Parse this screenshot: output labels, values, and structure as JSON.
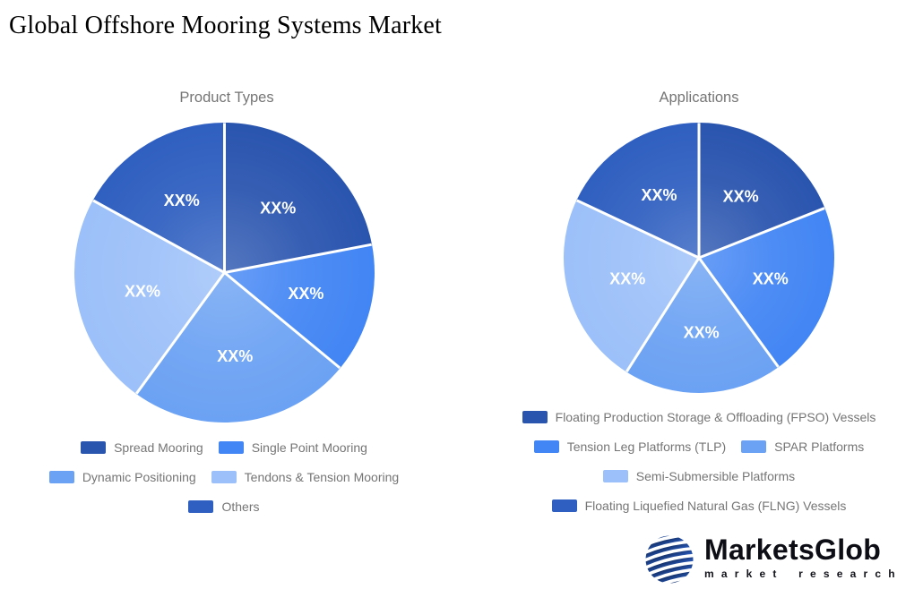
{
  "page": {
    "title": "Global Offshore Mooring Systems Market",
    "background_color": "#ffffff",
    "text_gray": "#757575",
    "slice_label_color": "#ffffff"
  },
  "branding": {
    "name": "MarketsGlob",
    "tagline": "market research",
    "globe_color": "#1c4390",
    "text_color": "#0d0d15"
  },
  "chart_data": [
    {
      "type": "pie",
      "title": "Product Types",
      "slice_label": "XX%",
      "legend_position": "bottom",
      "legend_rows": [
        [
          0,
          1
        ],
        [
          2,
          3
        ],
        [
          4
        ]
      ],
      "series": [
        {
          "name": "Spread Mooring",
          "value": 22,
          "color": "#2a55af",
          "display": "XX%"
        },
        {
          "name": "Single Point Mooring",
          "value": 14,
          "color": "#4285f4",
          "display": "XX%"
        },
        {
          "name": "Dynamic Positioning",
          "value": 24,
          "color": "#6ca2f3",
          "display": "XX%"
        },
        {
          "name": "Tendons & Tension Mooring",
          "value": 23,
          "color": "#9cc0f9",
          "display": "XX%"
        },
        {
          "name": "Others",
          "value": 17,
          "color": "#2f5fc0",
          "display": "XX%"
        }
      ]
    },
    {
      "type": "pie",
      "title": "Applications",
      "slice_label": "XX%",
      "legend_position": "bottom",
      "legend_rows": [
        [
          0
        ],
        [
          1,
          2
        ],
        [
          3
        ],
        [
          4
        ]
      ],
      "series": [
        {
          "name": "Floating Production Storage & Offloading (FPSO) Vessels",
          "value": 19,
          "color": "#2a55af",
          "display": "XX%"
        },
        {
          "name": "Tension Leg Platforms (TLP)",
          "value": 21,
          "color": "#4285f4",
          "display": "XX%"
        },
        {
          "name": "SPAR Platforms",
          "value": 19,
          "color": "#6ca2f3",
          "display": "XX%"
        },
        {
          "name": "Semi-Submersible Platforms",
          "value": 23,
          "color": "#9cc0f9",
          "display": "XX%"
        },
        {
          "name": "Floating Liquefied Natural Gas (FLNG) Vessels",
          "value": 18,
          "color": "#2f5fc0",
          "display": "XX%"
        }
      ]
    }
  ]
}
